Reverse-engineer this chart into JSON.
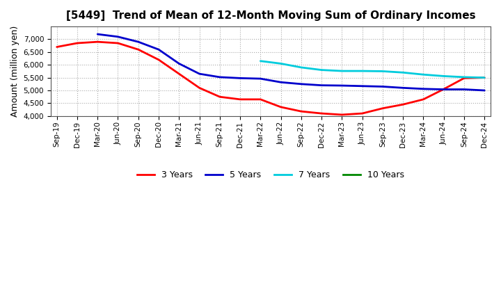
{
  "title": "[5449]  Trend of Mean of 12-Month Moving Sum of Ordinary Incomes",
  "ylabel": "Amount (million yen)",
  "background_color": "#ffffff",
  "plot_background_color": "#ffffff",
  "grid_color": "#aaaaaa",
  "ylim": [
    4000,
    7500
  ],
  "yticks": [
    4000,
    4500,
    5000,
    5500,
    6000,
    6500,
    7000
  ],
  "x_labels": [
    "Sep-19",
    "Dec-19",
    "Mar-20",
    "Jun-20",
    "Sep-20",
    "Dec-20",
    "Mar-21",
    "Jun-21",
    "Sep-21",
    "Dec-21",
    "Mar-22",
    "Jun-22",
    "Sep-22",
    "Dec-22",
    "Mar-23",
    "Jun-23",
    "Sep-23",
    "Dec-23",
    "Mar-24",
    "Jun-24",
    "Sep-24",
    "Dec-24"
  ],
  "series": {
    "3 Years": {
      "color": "#ff0000",
      "linewidth": 2.0,
      "values": [
        6700,
        6850,
        6900,
        6850,
        6600,
        6200,
        5650,
        5100,
        4750,
        4650,
        4650,
        4350,
        4180,
        4100,
        4050,
        4100,
        4300,
        4450,
        4650,
        5050,
        5480,
        5500
      ]
    },
    "5 Years": {
      "color": "#0000cc",
      "linewidth": 2.0,
      "values": [
        null,
        null,
        7200,
        7100,
        6900,
        6600,
        6050,
        5650,
        5520,
        5480,
        5460,
        5320,
        5250,
        5200,
        5190,
        5170,
        5150,
        5100,
        5060,
        5040,
        5040,
        5000
      ]
    },
    "7 Years": {
      "color": "#00ccdd",
      "linewidth": 2.0,
      "values": [
        null,
        null,
        null,
        null,
        null,
        null,
        null,
        null,
        null,
        null,
        6150,
        6050,
        5900,
        5800,
        5760,
        5760,
        5750,
        5700,
        5620,
        5560,
        5520,
        5500
      ]
    },
    "10 Years": {
      "color": "#008800",
      "linewidth": 2.0,
      "values": [
        null,
        null,
        null,
        null,
        null,
        null,
        null,
        null,
        null,
        null,
        null,
        null,
        null,
        null,
        null,
        null,
        null,
        null,
        null,
        null,
        null,
        null
      ]
    }
  },
  "legend_labels": [
    "3 Years",
    "5 Years",
    "7 Years",
    "10 Years"
  ],
  "legend_colors": [
    "#ff0000",
    "#0000cc",
    "#00ccdd",
    "#008800"
  ],
  "title_fontsize": 11,
  "tick_fontsize": 7.5,
  "label_fontsize": 9
}
